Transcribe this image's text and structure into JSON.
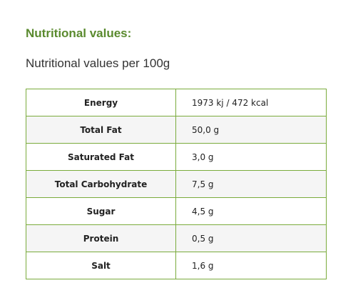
{
  "header": {
    "title": "Nutritional values:",
    "subtitle": "Nutritional values per 100g"
  },
  "table": {
    "rows": [
      [
        "Energy",
        "1973 kj / 472 kcal"
      ],
      [
        "Total Fat",
        "50,0 g"
      ],
      [
        "Saturated Fat",
        "3,0 g"
      ],
      [
        "Total Carbohydrate",
        "7,5 g"
      ],
      [
        "Sugar",
        "4,5 g"
      ],
      [
        "Protein",
        "0,5 g"
      ],
      [
        "Salt",
        "1,6 g"
      ]
    ]
  }
}
